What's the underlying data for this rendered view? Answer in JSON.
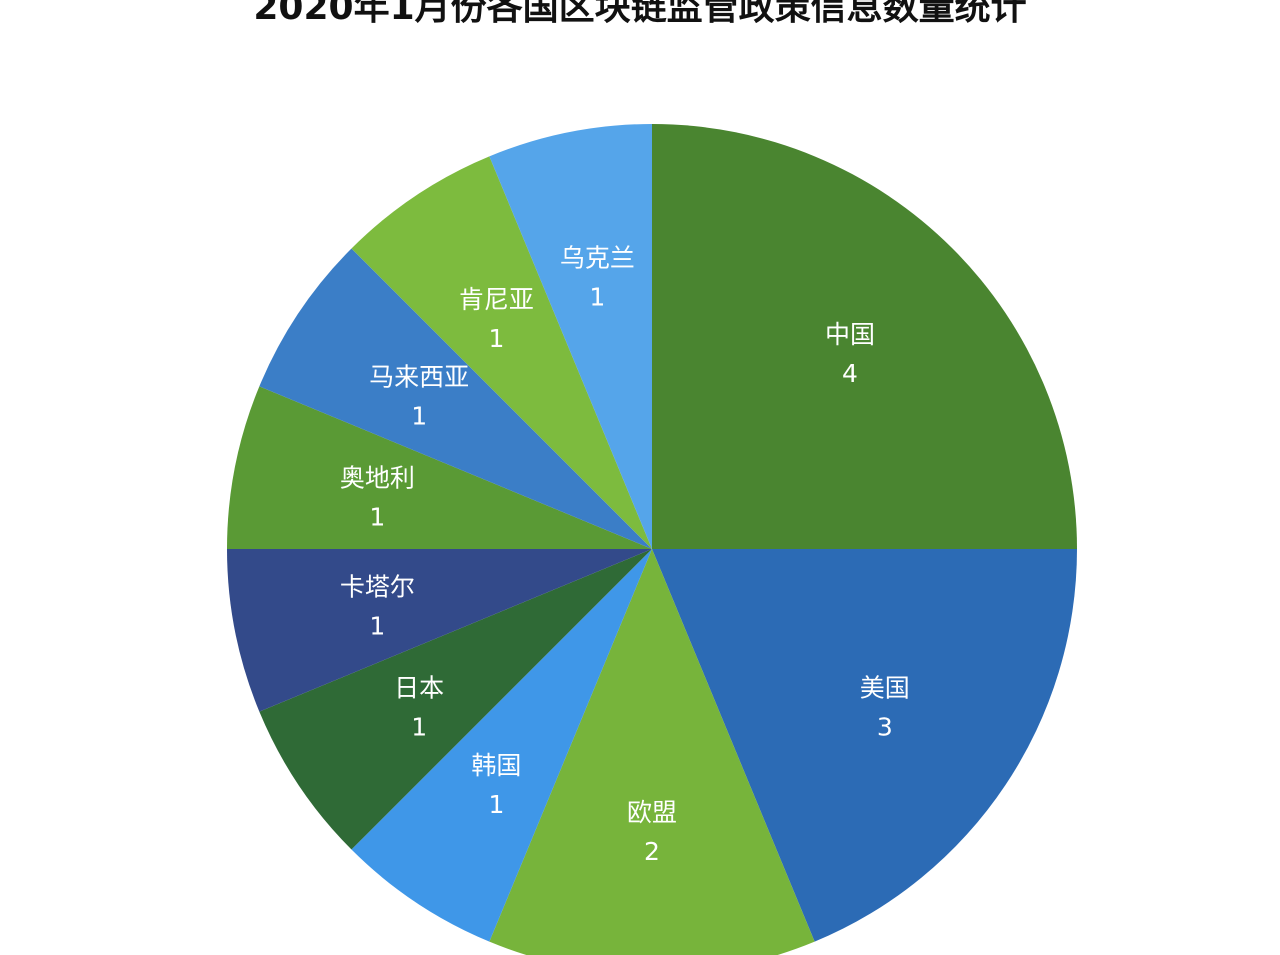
{
  "chart_data": {
    "type": "pie",
    "title": "2020年1月份各国区块链监管政策信息数量统计",
    "slices": [
      {
        "label": "中国",
        "value": 4,
        "color": "#4a8530"
      },
      {
        "label": "美国",
        "value": 3,
        "color": "#2c6bb5"
      },
      {
        "label": "欧盟",
        "value": 2,
        "color": "#77b43b"
      },
      {
        "label": "韩国",
        "value": 1,
        "color": "#3f97e8"
      },
      {
        "label": "日本",
        "value": 1,
        "color": "#2f6a36"
      },
      {
        "label": "卡塔尔",
        "value": 1,
        "color": "#334a8a"
      },
      {
        "label": "奥地利",
        "value": 1,
        "color": "#5a9a35"
      },
      {
        "label": "马来西亚",
        "value": 1,
        "color": "#3b7ec7"
      },
      {
        "label": "肯尼亚",
        "value": 1,
        "color": "#7dbb3e"
      },
      {
        "label": "乌克兰",
        "value": 1,
        "color": "#55a5ea"
      }
    ],
    "legend": "none",
    "start_angle": "12 o'clock, clockwise"
  }
}
